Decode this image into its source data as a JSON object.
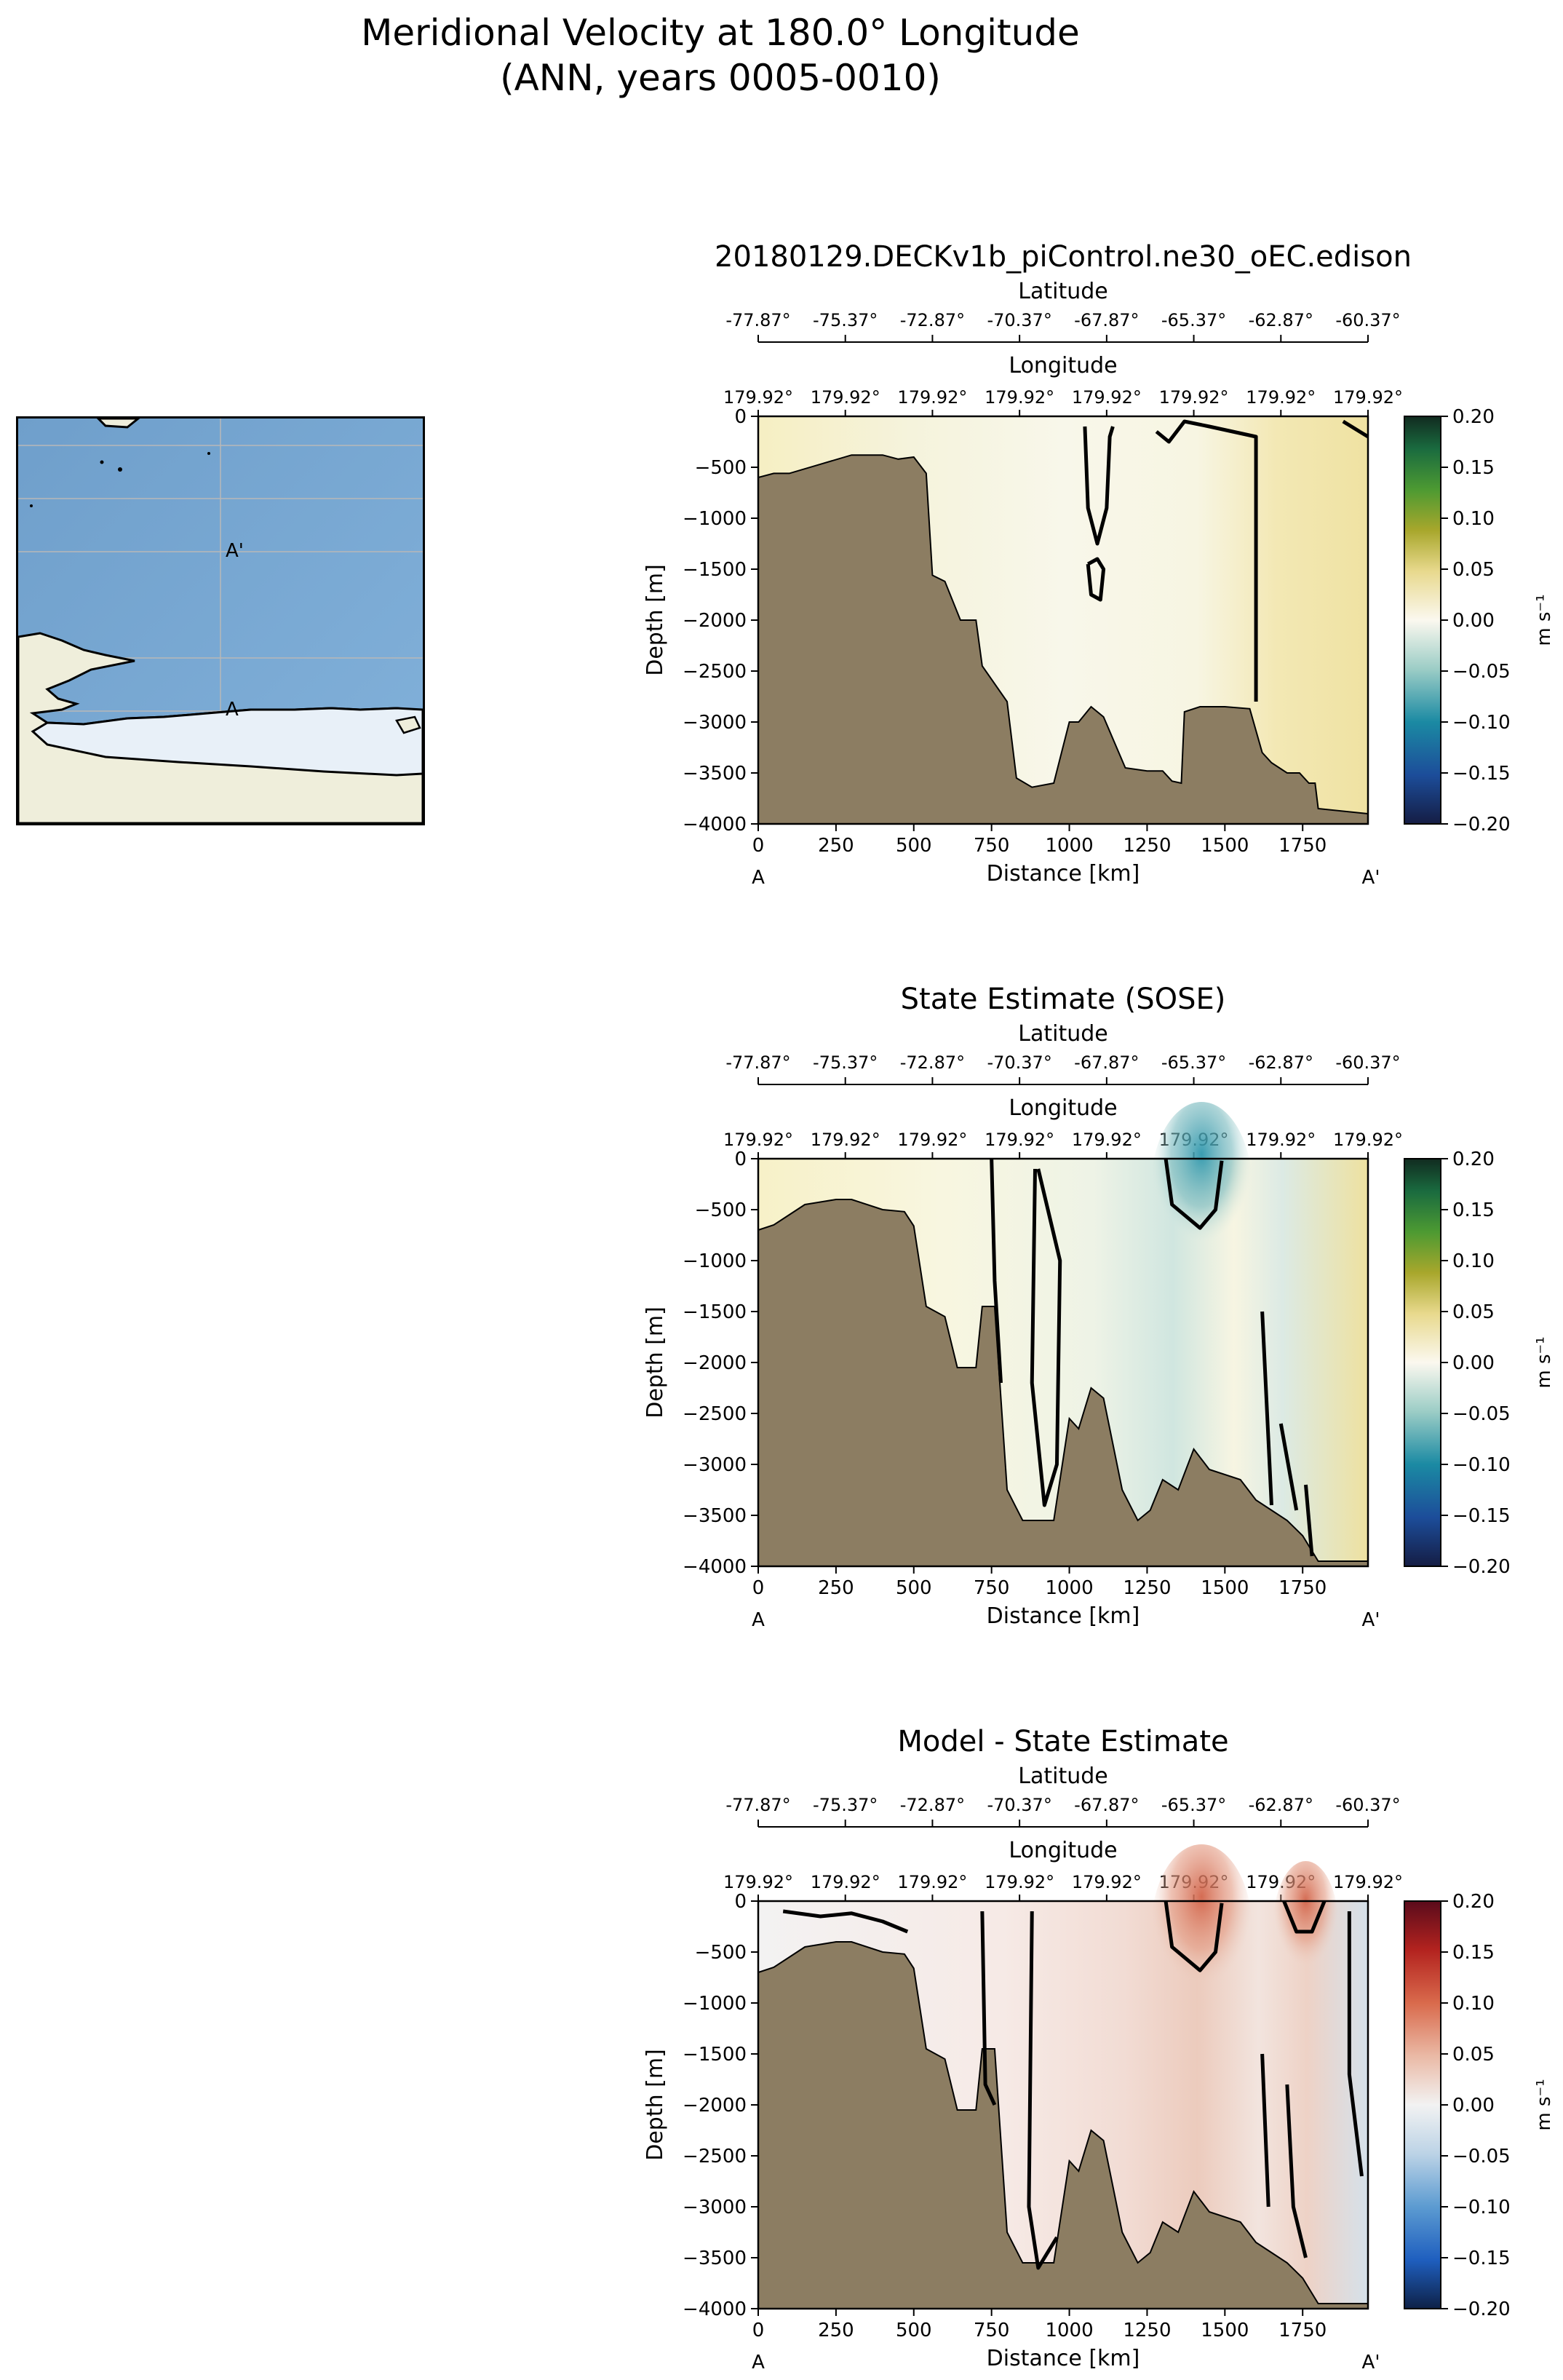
{
  "figure": {
    "title_line1": "Meridional Velocity at 180.0° Longitude",
    "title_line2": "(ANN, years 0005-0010)"
  },
  "map": {
    "start_label": "A",
    "end_label": "A'",
    "ocean_color": "#73a3cf",
    "land_color": "#efeedb",
    "ice_color": "#e8f0f8"
  },
  "colors": {
    "land_fill": "#8c7d62",
    "positive_model": "#f5edc0",
    "negative_model": "#a9cfcd",
    "positive_diff": "#e0a190",
    "negative_diff": "#b4cde1"
  },
  "chart_data": [
    {
      "type": "heatmap",
      "title": "20180129.DECKv1b_piControl.ne30_oEC.edison",
      "xlabel": "Distance [km]",
      "ylabel": "Depth [m]",
      "secondary_axes": [
        {
          "label": "Latitude",
          "ticks": [
            "-77.87°",
            "-75.37°",
            "-72.87°",
            "-70.37°",
            "-67.87°",
            "-65.37°",
            "-62.87°",
            "-60.37°"
          ]
        },
        {
          "label": "Longitude",
          "ticks": [
            "179.92°",
            "179.92°",
            "179.92°",
            "179.92°",
            "179.92°",
            "179.92°",
            "179.92°",
            "179.92°"
          ]
        }
      ],
      "xlim": [
        0,
        1960
      ],
      "ylim": [
        -4000,
        0
      ],
      "xticks": [
        0,
        250,
        500,
        750,
        1000,
        1250,
        1500,
        1750
      ],
      "yticks": [
        0,
        -500,
        -1000,
        -1500,
        -2000,
        -2500,
        -3000,
        -3500,
        -4000
      ],
      "end_labels": [
        "A",
        "A'"
      ],
      "colorbar": {
        "label": "m s⁻¹",
        "range": [
          -0.2,
          0.2
        ],
        "ticks": [
          "0.20",
          "0.15",
          "0.10",
          "0.05",
          "0.00",
          "−0.05",
          "−0.10",
          "−0.15",
          "−0.20"
        ],
        "colormap": "gist_earth_like"
      },
      "bathymetry": [
        [
          0,
          -600
        ],
        [
          50,
          -560
        ],
        [
          100,
          -560
        ],
        [
          200,
          -470
        ],
        [
          300,
          -380
        ],
        [
          400,
          -380
        ],
        [
          450,
          -420
        ],
        [
          500,
          -400
        ],
        [
          540,
          -560
        ],
        [
          560,
          -1560
        ],
        [
          600,
          -1620
        ],
        [
          650,
          -2000
        ],
        [
          700,
          -2000
        ],
        [
          720,
          -2450
        ],
        [
          800,
          -2800
        ],
        [
          830,
          -3550
        ],
        [
          880,
          -3640
        ],
        [
          950,
          -3600
        ],
        [
          1000,
          -3000
        ],
        [
          1030,
          -3000
        ],
        [
          1070,
          -2850
        ],
        [
          1110,
          -2950
        ],
        [
          1180,
          -3450
        ],
        [
          1250,
          -3480
        ],
        [
          1300,
          -3480
        ],
        [
          1330,
          -3580
        ],
        [
          1360,
          -3600
        ],
        [
          1370,
          -2900
        ],
        [
          1420,
          -2850
        ],
        [
          1500,
          -2850
        ],
        [
          1580,
          -2870
        ],
        [
          1620,
          -3300
        ],
        [
          1650,
          -3400
        ],
        [
          1700,
          -3500
        ],
        [
          1740,
          -3500
        ],
        [
          1770,
          -3600
        ],
        [
          1790,
          -3600
        ],
        [
          1800,
          -3850
        ],
        [
          1960,
          -3900
        ]
      ],
      "zero_contours": [
        [
          [
            1050,
            -100
          ],
          [
            1060,
            -900
          ],
          [
            1090,
            -1250
          ],
          [
            1120,
            -900
          ],
          [
            1130,
            -200
          ],
          [
            1140,
            -100
          ]
        ],
        [
          [
            1060,
            -1450
          ],
          [
            1070,
            -1750
          ],
          [
            1100,
            -1800
          ],
          [
            1110,
            -1500
          ],
          [
            1090,
            -1400
          ],
          [
            1060,
            -1450
          ]
        ],
        [
          [
            1280,
            -150
          ],
          [
            1320,
            -250
          ],
          [
            1370,
            -50
          ],
          [
            1450,
            -100
          ],
          [
            1600,
            -200
          ],
          [
            1600,
            -2800
          ]
        ],
        [
          [
            1880,
            -50
          ],
          [
            1960,
            -200
          ]
        ]
      ]
    },
    {
      "type": "heatmap",
      "title": "State Estimate (SOSE)",
      "xlabel": "Distance [km]",
      "ylabel": "Depth [m]",
      "secondary_axes": [
        {
          "label": "Latitude",
          "ticks": [
            "-77.87°",
            "-75.37°",
            "-72.87°",
            "-70.37°",
            "-67.87°",
            "-65.37°",
            "-62.87°",
            "-60.37°"
          ]
        },
        {
          "label": "Longitude",
          "ticks": [
            "179.92°",
            "179.92°",
            "179.92°",
            "179.92°",
            "179.92°",
            "179.92°",
            "179.92°",
            "179.92°"
          ]
        }
      ],
      "xlim": [
        0,
        1960
      ],
      "ylim": [
        -4000,
        0
      ],
      "xticks": [
        0,
        250,
        500,
        750,
        1000,
        1250,
        1500,
        1750
      ],
      "yticks": [
        0,
        -500,
        -1000,
        -1500,
        -2000,
        -2500,
        -3000,
        -3500,
        -4000
      ],
      "end_labels": [
        "A",
        "A'"
      ],
      "colorbar": {
        "label": "m s⁻¹",
        "range": [
          -0.2,
          0.2
        ],
        "ticks": [
          "0.20",
          "0.15",
          "0.10",
          "0.05",
          "0.00",
          "−0.05",
          "−0.10",
          "−0.15",
          "−0.20"
        ],
        "colormap": "gist_earth_like"
      },
      "bathymetry": [
        [
          0,
          -700
        ],
        [
          50,
          -650
        ],
        [
          100,
          -550
        ],
        [
          150,
          -450
        ],
        [
          250,
          -400
        ],
        [
          300,
          -400
        ],
        [
          400,
          -500
        ],
        [
          470,
          -520
        ],
        [
          500,
          -660
        ],
        [
          540,
          -1450
        ],
        [
          600,
          -1550
        ],
        [
          640,
          -2050
        ],
        [
          700,
          -2050
        ],
        [
          720,
          -1450
        ],
        [
          760,
          -1450
        ],
        [
          800,
          -3250
        ],
        [
          850,
          -3550
        ],
        [
          950,
          -3550
        ],
        [
          1000,
          -2550
        ],
        [
          1030,
          -2650
        ],
        [
          1070,
          -2250
        ],
        [
          1110,
          -2350
        ],
        [
          1170,
          -3250
        ],
        [
          1220,
          -3550
        ],
        [
          1260,
          -3450
        ],
        [
          1300,
          -3150
        ],
        [
          1350,
          -3250
        ],
        [
          1400,
          -2850
        ],
        [
          1450,
          -3050
        ],
        [
          1550,
          -3150
        ],
        [
          1600,
          -3350
        ],
        [
          1650,
          -3450
        ],
        [
          1700,
          -3550
        ],
        [
          1750,
          -3700
        ],
        [
          1800,
          -3950
        ],
        [
          1960,
          -3950
        ]
      ],
      "zero_contours": [
        [
          [
            750,
            0
          ],
          [
            760,
            -1200
          ],
          [
            780,
            -2200
          ]
        ],
        [
          [
            890,
            -100
          ],
          [
            880,
            -2200
          ],
          [
            920,
            -3400
          ],
          [
            960,
            -3000
          ],
          [
            970,
            -1000
          ],
          [
            900,
            -100
          ]
        ],
        [
          [
            1310,
            0
          ],
          [
            1330,
            -450
          ],
          [
            1420,
            -680
          ],
          [
            1470,
            -500
          ],
          [
            1490,
            -20
          ]
        ],
        [
          [
            1620,
            -1500
          ],
          [
            1650,
            -3400
          ]
        ],
        [
          [
            1680,
            -2600
          ],
          [
            1730,
            -3450
          ]
        ],
        [
          [
            1760,
            -3200
          ],
          [
            1780,
            -3900
          ]
        ]
      ]
    },
    {
      "type": "heatmap",
      "title": "Model - State Estimate",
      "xlabel": "Distance [km]",
      "ylabel": "Depth [m]",
      "secondary_axes": [
        {
          "label": "Latitude",
          "ticks": [
            "-77.87°",
            "-75.37°",
            "-72.87°",
            "-70.37°",
            "-67.87°",
            "-65.37°",
            "-62.87°",
            "-60.37°"
          ]
        },
        {
          "label": "Longitude",
          "ticks": [
            "179.92°",
            "179.92°",
            "179.92°",
            "179.92°",
            "179.92°",
            "179.92°",
            "179.92°",
            "179.92°"
          ]
        }
      ],
      "xlim": [
        0,
        1960
      ],
      "ylim": [
        -4000,
        0
      ],
      "xticks": [
        0,
        250,
        500,
        750,
        1000,
        1250,
        1500,
        1750
      ],
      "yticks": [
        0,
        -500,
        -1000,
        -1500,
        -2000,
        -2500,
        -3000,
        -3500,
        -4000
      ],
      "end_labels": [
        "A",
        "A'"
      ],
      "colorbar": {
        "label": "m s⁻¹",
        "range": [
          -0.2,
          0.2
        ],
        "ticks": [
          "0.20",
          "0.15",
          "0.10",
          "0.05",
          "0.00",
          "−0.05",
          "−0.10",
          "−0.15",
          "−0.20"
        ],
        "colormap": "RdBu_r"
      },
      "bathymetry": [
        [
          0,
          -700
        ],
        [
          50,
          -650
        ],
        [
          100,
          -550
        ],
        [
          150,
          -450
        ],
        [
          250,
          -400
        ],
        [
          300,
          -400
        ],
        [
          400,
          -500
        ],
        [
          470,
          -520
        ],
        [
          500,
          -660
        ],
        [
          540,
          -1450
        ],
        [
          600,
          -1550
        ],
        [
          640,
          -2050
        ],
        [
          700,
          -2050
        ],
        [
          720,
          -1450
        ],
        [
          760,
          -1450
        ],
        [
          800,
          -3250
        ],
        [
          850,
          -3550
        ],
        [
          950,
          -3550
        ],
        [
          1000,
          -2550
        ],
        [
          1030,
          -2650
        ],
        [
          1070,
          -2250
        ],
        [
          1110,
          -2350
        ],
        [
          1170,
          -3250
        ],
        [
          1220,
          -3550
        ],
        [
          1260,
          -3450
        ],
        [
          1300,
          -3150
        ],
        [
          1350,
          -3250
        ],
        [
          1400,
          -2850
        ],
        [
          1450,
          -3050
        ],
        [
          1550,
          -3150
        ],
        [
          1600,
          -3350
        ],
        [
          1650,
          -3450
        ],
        [
          1700,
          -3550
        ],
        [
          1750,
          -3700
        ],
        [
          1800,
          -3950
        ],
        [
          1960,
          -3950
        ]
      ],
      "zero_contours": [
        [
          [
            80,
            -100
          ],
          [
            200,
            -150
          ],
          [
            300,
            -120
          ],
          [
            400,
            -200
          ],
          [
            480,
            -300
          ]
        ],
        [
          [
            720,
            -100
          ],
          [
            730,
            -1800
          ],
          [
            760,
            -2000
          ]
        ],
        [
          [
            880,
            -100
          ],
          [
            870,
            -3000
          ],
          [
            900,
            -3600
          ],
          [
            960,
            -3300
          ]
        ],
        [
          [
            1310,
            0
          ],
          [
            1330,
            -450
          ],
          [
            1420,
            -680
          ],
          [
            1470,
            -500
          ],
          [
            1490,
            -20
          ]
        ],
        [
          [
            1620,
            -1500
          ],
          [
            1640,
            -3000
          ]
        ],
        [
          [
            1690,
            0
          ],
          [
            1730,
            -300
          ],
          [
            1780,
            -300
          ],
          [
            1820,
            0
          ]
        ],
        [
          [
            1700,
            -1800
          ],
          [
            1720,
            -3000
          ],
          [
            1760,
            -3500
          ]
        ],
        [
          [
            1900,
            -100
          ],
          [
            1900,
            -1700
          ],
          [
            1940,
            -2700
          ]
        ]
      ]
    }
  ]
}
